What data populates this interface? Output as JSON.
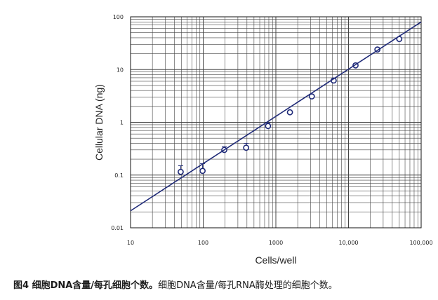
{
  "chart_data": {
    "type": "scatter",
    "xlabel": "Cells/well",
    "ylabel": "Cellular DNA (ng)",
    "x_scale": "log",
    "y_scale": "log",
    "xlim": [
      10,
      100000
    ],
    "ylim": [
      0.01,
      100
    ],
    "grid": true,
    "x_ticks": [
      10,
      100,
      1000,
      10000,
      100000
    ],
    "x_tick_labels": [
      "10",
      "100",
      "1000",
      "10,000",
      "100,000"
    ],
    "y_ticks": [
      0.01,
      0.1,
      1,
      10,
      100
    ],
    "y_tick_labels": [
      "0.01",
      "0.1",
      "1",
      "10",
      "100"
    ],
    "series": [
      {
        "type": "scatter",
        "marker": "open-circle",
        "x": [
          49,
          98,
          195,
          390,
          781,
          1563,
          3125,
          6250,
          12500,
          25000,
          50000
        ],
        "y": [
          0.115,
          0.12,
          0.3,
          0.33,
          0.85,
          1.55,
          3.1,
          6.2,
          12.0,
          24.0,
          38.0
        ],
        "y_err": [
          0.035,
          0.045,
          0.045,
          0.07,
          0.12,
          0,
          0,
          0,
          0,
          0,
          0
        ]
      },
      {
        "type": "line",
        "x": [
          10,
          100000
        ],
        "y": [
          0.021,
          80
        ]
      }
    ],
    "color": "#1f2a78"
  },
  "caption": {
    "bold": "图4 细胞DNA含量/每孔细胞个数。",
    "text": "细胞DNA含量/每孔RNA酶处理的细胞个数。"
  }
}
